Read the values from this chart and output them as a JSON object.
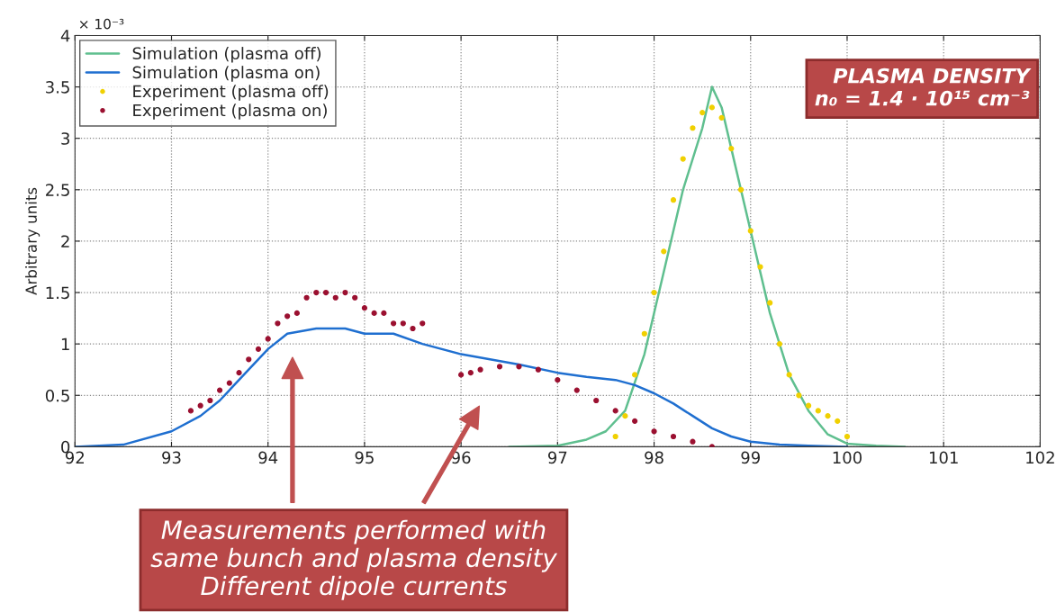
{
  "chart_data": {
    "type": "line",
    "ylabel": "Arbitrary units",
    "xlim": [
      92,
      102
    ],
    "xticks": [
      92,
      93,
      94,
      95,
      96,
      97,
      98,
      99,
      100,
      101,
      102
    ],
    "ylim": [
      0,
      4
    ],
    "yticks": [
      0,
      0.5,
      1,
      1.5,
      2,
      2.5,
      3,
      3.5,
      4
    ],
    "grid": true,
    "legend": "top left",
    "annotations": [
      "× 10⁻³",
      "Measurements performed with\nsame bunch and plasma density\nDifferent dipole currents",
      "PLASMA DENSITY\nn₀ = 1.4 · 10¹⁵ cm⁻³"
    ],
    "series": [
      {
        "name": "Simulation (plasma off)",
        "color": "#5fbf8f",
        "x": [
          96.5,
          97,
          97.3,
          97.5,
          97.7,
          97.9,
          98.1,
          98.3,
          98.5,
          98.6,
          98.7,
          98.8,
          99.0,
          99.2,
          99.4,
          99.6,
          99.8,
          100,
          100.3,
          100.6
        ],
        "values": [
          0,
          0.01,
          0.07,
          0.15,
          0.35,
          0.9,
          1.7,
          2.5,
          3.1,
          3.5,
          3.3,
          2.9,
          2.1,
          1.3,
          0.7,
          0.35,
          0.12,
          0.03,
          0.01,
          0
        ]
      },
      {
        "name": "Simulation (plasma on)",
        "color": "#1f6fd0",
        "x": [
          92,
          92.5,
          93,
          93.3,
          93.5,
          93.8,
          94,
          94.2,
          94.5,
          94.8,
          95,
          95.3,
          95.6,
          96,
          96.3,
          96.6,
          97,
          97.3,
          97.6,
          97.8,
          98,
          98.2,
          98.4,
          98.6,
          98.8,
          99,
          99.3,
          99.6,
          100
        ],
        "values": [
          0,
          0.02,
          0.15,
          0.3,
          0.45,
          0.75,
          0.95,
          1.1,
          1.15,
          1.15,
          1.1,
          1.1,
          1.0,
          0.9,
          0.85,
          0.8,
          0.72,
          0.68,
          0.65,
          0.6,
          0.52,
          0.42,
          0.3,
          0.18,
          0.1,
          0.05,
          0.02,
          0.01,
          0
        ]
      },
      {
        "name": "Experiment (plasma off)",
        "type": "scatter",
        "marker": "circle",
        "color": "#f0d000",
        "x": [
          97.6,
          97.7,
          97.8,
          97.9,
          98.0,
          98.1,
          98.2,
          98.3,
          98.4,
          98.5,
          98.6,
          98.7,
          98.8,
          98.9,
          99.0,
          99.1,
          99.2,
          99.3,
          99.4,
          99.5,
          99.6,
          99.7,
          99.8,
          99.9,
          100
        ],
        "values": [
          0.1,
          0.3,
          0.7,
          1.1,
          1.5,
          1.9,
          2.4,
          2.8,
          3.1,
          3.25,
          3.3,
          3.2,
          2.9,
          2.5,
          2.1,
          1.75,
          1.4,
          1.0,
          0.7,
          0.5,
          0.4,
          0.35,
          0.3,
          0.25,
          0.1
        ]
      },
      {
        "name": "Experiment (plasma on)",
        "type": "scatter",
        "marker": "circle",
        "color": "#9b1030",
        "x": [
          93.2,
          93.3,
          93.4,
          93.5,
          93.6,
          93.7,
          93.8,
          93.9,
          94,
          94.1,
          94.2,
          94.3,
          94.4,
          94.5,
          94.6,
          94.7,
          94.8,
          94.9,
          95.0,
          95.1,
          95.2,
          95.3,
          95.4,
          95.5,
          95.6,
          96.0,
          96.1,
          96.2,
          96.4,
          96.6,
          96.8,
          97.0,
          97.2,
          97.4,
          97.6,
          97.8,
          98.0,
          98.2,
          98.4,
          98.6
        ],
        "values": [
          0.35,
          0.4,
          0.45,
          0.55,
          0.62,
          0.72,
          0.85,
          0.95,
          1.05,
          1.2,
          1.27,
          1.3,
          1.45,
          1.5,
          1.5,
          1.45,
          1.5,
          1.45,
          1.35,
          1.3,
          1.3,
          1.2,
          1.2,
          1.15,
          1.2,
          0.7,
          0.72,
          0.75,
          0.78,
          0.78,
          0.75,
          0.65,
          0.55,
          0.45,
          0.35,
          0.25,
          0.15,
          0.1,
          0.05,
          0.0
        ]
      }
    ]
  }
}
